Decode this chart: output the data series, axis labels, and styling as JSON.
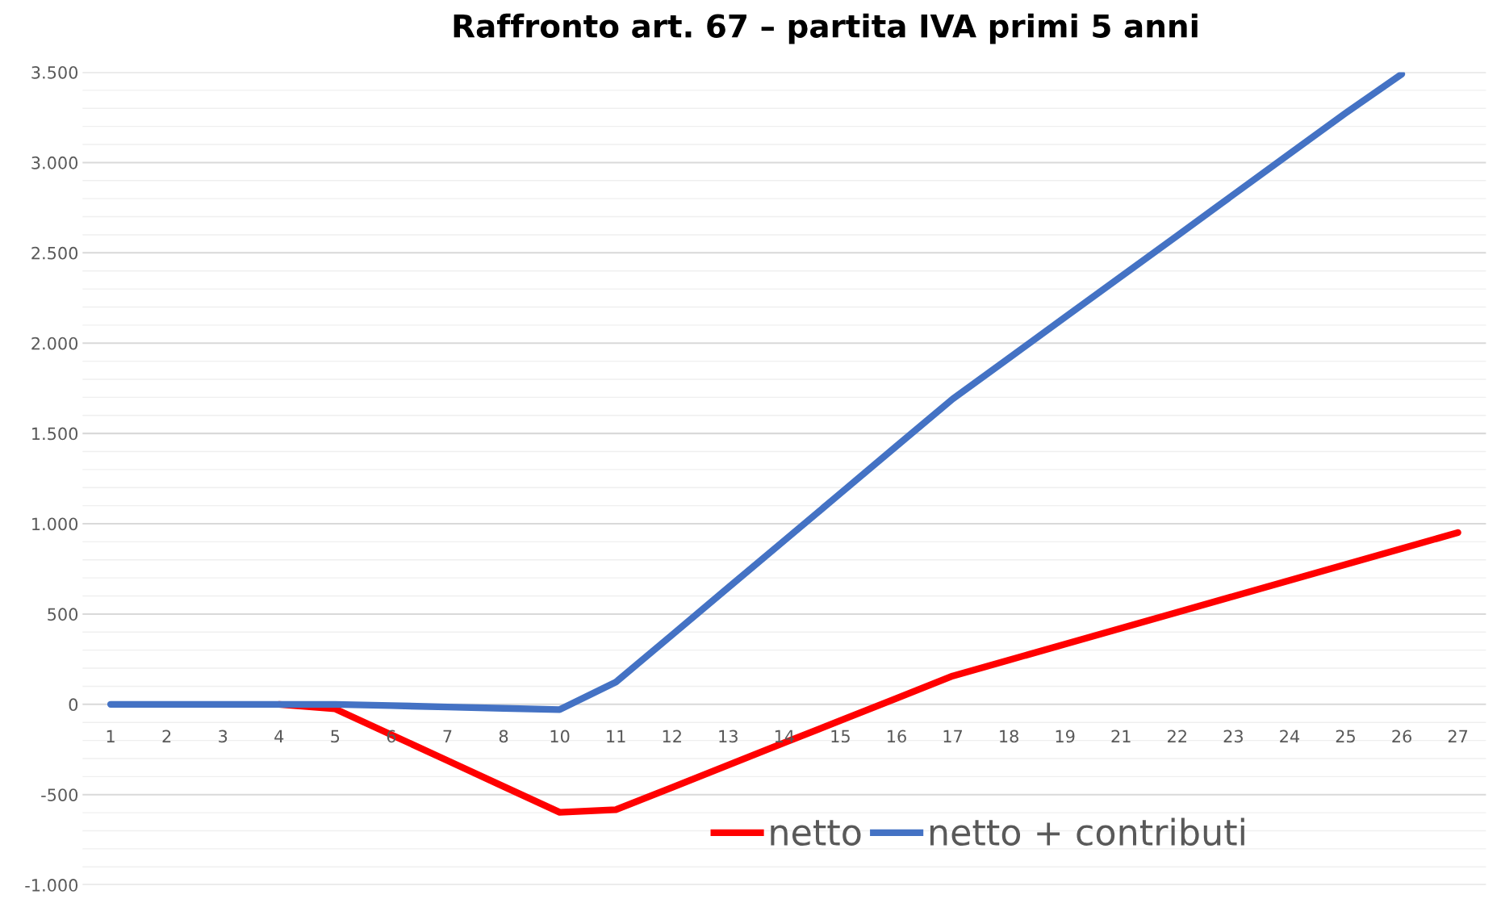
{
  "chart_data": {
    "type": "line",
    "title": "Raffronto art. 67 – partita IVA primi 5 anni",
    "categories": [
      "1",
      "2",
      "3",
      "4",
      "5",
      "6",
      "7",
      "8",
      "10",
      "11",
      "12",
      "13",
      "14",
      "15",
      "16",
      "17",
      "18",
      "19",
      "21",
      "22",
      "23",
      "24",
      "25",
      "26",
      "27"
    ],
    "series": [
      {
        "name": "netto",
        "color": "#ff0000",
        "values": [
          null,
          null,
          null,
          0,
          -25,
          -168,
          -311,
          -455,
          -598,
          -583,
          -460,
          -337,
          -213,
          -90,
          33,
          157,
          245,
          333,
          421,
          510,
          598,
          686,
          774,
          863,
          951
        ]
      },
      {
        "name": "netto + contributi",
        "color": "#4472c4",
        "values": [
          0,
          0,
          0,
          0,
          0,
          -7,
          -15,
          -22,
          -29,
          123,
          384,
          646,
          907,
          1168,
          1430,
          1691,
          1917,
          2143,
          2369,
          2595,
          2822,
          3048,
          3274,
          3490,
          null
        ]
      }
    ],
    "ylim": [
      -1000,
      3500
    ],
    "yticks": [
      {
        "value": -1000,
        "label": "-1.000"
      },
      {
        "value": -500,
        "label": "-500"
      },
      0,
      500,
      {
        "value": 1000,
        "label": "1.000"
      },
      {
        "value": 1500,
        "label": "1.500"
      },
      {
        "value": 2000,
        "label": "2.000"
      },
      {
        "value": 2500,
        "label": "2.500"
      },
      {
        "value": 3000,
        "label": "3.000"
      },
      {
        "value": 3500,
        "label": "3.500"
      }
    ],
    "grid": "y",
    "legend": "bottom",
    "marker": "none",
    "line_style": "solid"
  }
}
